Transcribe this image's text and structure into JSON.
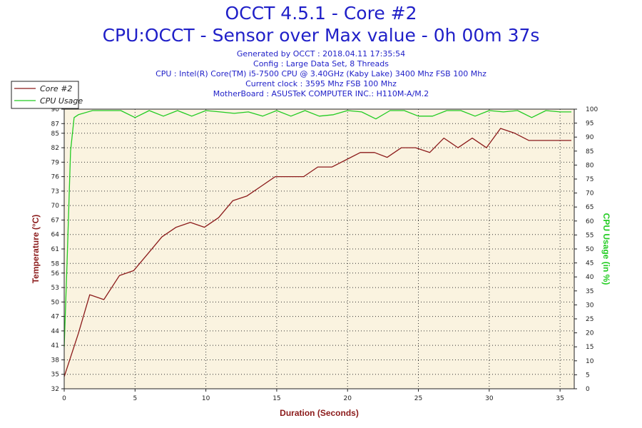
{
  "header": {
    "title": "OCCT 4.5.1 - Core #2",
    "subtitle": "CPU:OCCT - Sensor over Max value - 0h 00m 37s",
    "info_lines": [
      "Generated by OCCT : 2018.04.11 17:35:54",
      "Config : Large Data Set, 8 Threads",
      "CPU : Intel(R) Core(TM) i5-7500 CPU @ 3.40GHz (Kaby Lake) 3400 Mhz FSB 100 Mhz",
      "Current clock : 3595 Mhz FSB 100 Mhz",
      "MotherBoard : ASUSTeK COMPUTER INC.: H110M-A/M.2"
    ]
  },
  "colors": {
    "temperature": "#8b1a1a",
    "cpu_usage": "#22cc22",
    "plot_bg": "#faf3e0",
    "grid": "#333333",
    "title": "#1f1fc8"
  },
  "chart_data": {
    "type": "line",
    "xlabel": "Duration (Seconds)",
    "ylabel": "Temperature (°C)",
    "y2label": "CPU Usage (in %)",
    "xlim": [
      0,
      36
    ],
    "ylim": [
      32,
      90
    ],
    "y2lim": [
      0,
      100
    ],
    "x_ticks": [
      0,
      5,
      10,
      15,
      20,
      25,
      30,
      35
    ],
    "y_ticks": [
      32,
      35,
      38,
      41,
      44,
      47,
      50,
      53,
      56,
      58,
      61,
      64,
      67,
      70,
      73,
      76,
      79,
      82,
      85,
      87,
      90
    ],
    "y_tick_labels": [
      "32",
      "35",
      "38",
      "41",
      "44",
      "47",
      "50",
      "53",
      "56",
      "58",
      "61",
      "64",
      "67",
      "70",
      "73",
      "76",
      "79",
      "82",
      "85",
      "87",
      "90"
    ],
    "y2_ticks": [
      0,
      5,
      10,
      15,
      20,
      25,
      30,
      35,
      40,
      45,
      50,
      55,
      60,
      65,
      70,
      75,
      80,
      85,
      90,
      95,
      100
    ],
    "grid": true,
    "legend_position": "top-left",
    "series": [
      {
        "name": "Core #2",
        "axis": "left",
        "x": [
          0,
          1,
          1.8,
          2.8,
          3.9,
          4.9,
          5.9,
          6.9,
          7.9,
          8.9,
          9.9,
          10.9,
          11.9,
          12.9,
          13.9,
          14.9,
          15.9,
          16.9,
          17.9,
          18.9,
          19.9,
          20.9,
          21.9,
          22.8,
          23.8,
          24.8,
          25.8,
          26.8,
          27.8,
          28.8,
          29.8,
          30.8,
          31.8,
          32.8,
          33.8,
          34.8,
          35.8
        ],
        "values": [
          34.5,
          43.5,
          51.5,
          50.5,
          55.5,
          56.5,
          60.0,
          63.5,
          65.5,
          66.5,
          65.5,
          67.5,
          71.0,
          72.0,
          74.0,
          76.0,
          76.0,
          76.0,
          78.0,
          78.0,
          79.5,
          81.0,
          81.0,
          80.0,
          82.0,
          82.0,
          81.0,
          84.0,
          82.0,
          84.0,
          82.0,
          86.0,
          85.0,
          83.5,
          83.5,
          83.5,
          83.5
        ]
      },
      {
        "name": "CPU Usage",
        "axis": "right",
        "x": [
          0,
          0.2,
          0.45,
          0.7,
          1,
          2,
          3,
          4,
          5,
          6,
          7,
          8,
          9,
          10,
          11,
          12,
          13,
          14,
          15,
          16,
          17,
          18,
          19,
          20,
          21,
          22,
          23,
          24,
          25,
          26,
          27,
          28,
          29,
          30,
          31,
          32,
          33,
          34,
          35,
          35.8
        ],
        "values": [
          15,
          45,
          85,
          97,
          98,
          99.5,
          99.5,
          99.5,
          97,
          99.5,
          97.5,
          99.5,
          97.5,
          99.5,
          99,
          98.5,
          99,
          97.5,
          99.5,
          97.5,
          99.5,
          97.5,
          98,
          99.5,
          99,
          96.5,
          99.5,
          99.5,
          97.5,
          97.5,
          99.5,
          99.5,
          97.5,
          99.5,
          99,
          99.5,
          97,
          99.5,
          99,
          99
        ]
      }
    ]
  }
}
